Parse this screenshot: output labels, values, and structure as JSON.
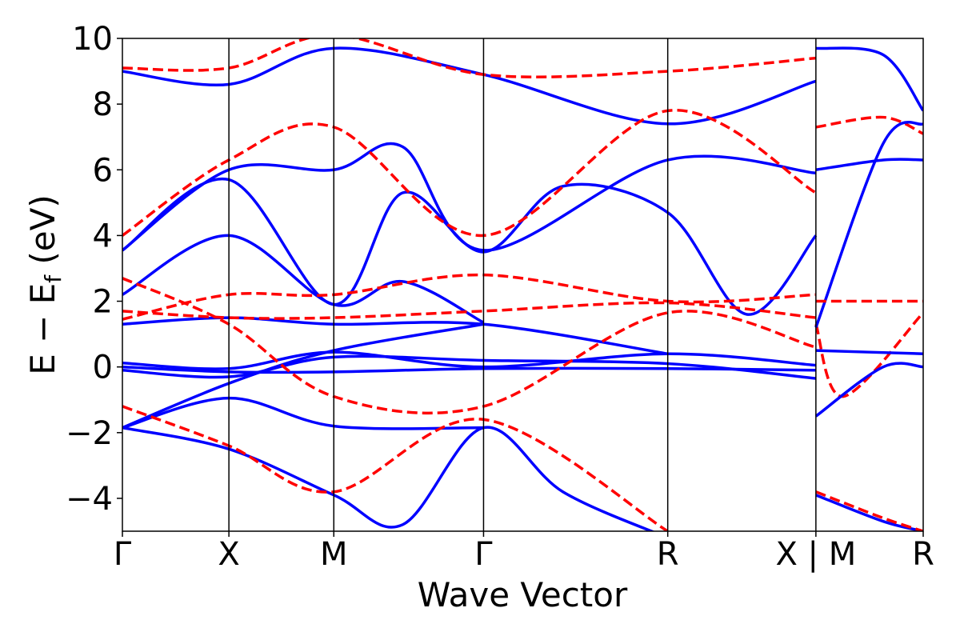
{
  "chart_data": {
    "type": "line",
    "xlabel": "Wave Vector",
    "ylabel": "E − E",
    "ylabel_subscript": "f",
    "ylabel_unit": " (eV)",
    "ylim": [
      -5,
      10
    ],
    "xlim": [
      0,
      1
    ],
    "yticks": [
      -4,
      -2,
      0,
      2,
      4,
      6,
      8,
      10
    ],
    "ytick_labels": [
      "−4",
      "−2",
      "0",
      "2",
      "4",
      "6",
      "8",
      "10"
    ],
    "kpoints": [
      {
        "label": "Γ",
        "x": 0.0
      },
      {
        "label": "X",
        "x": 0.133
      },
      {
        "label": "M",
        "x": 0.264
      },
      {
        "label": "Γ",
        "x": 0.451
      },
      {
        "label": "R",
        "x": 0.681
      },
      {
        "label": "X | M",
        "x": 0.866
      },
      {
        "label": "R",
        "x": 1.0
      }
    ],
    "style": {
      "blue": "#0000ff",
      "red": "#ff0000",
      "red_dash": "dashed",
      "blue_dash": "solid",
      "grid": false
    },
    "series": [
      {
        "color": "blue",
        "points": [
          [
            0,
            0.12
          ],
          [
            0.133,
            -0.05
          ],
          [
            0.264,
            0.45
          ],
          [
            0.451,
            0.0
          ],
          [
            0.681,
            0.4
          ],
          [
            0.866,
            0.05
          ]
        ]
      },
      {
        "color": "blue",
        "points": [
          [
            0,
            0.0
          ],
          [
            0.133,
            -0.15
          ],
          [
            0.264,
            -0.15
          ],
          [
            0.451,
            -0.05
          ],
          [
            0.681,
            -0.05
          ],
          [
            0.866,
            -0.1
          ]
        ]
      },
      {
        "color": "blue",
        "points": [
          [
            0,
            -0.1
          ],
          [
            0.133,
            -0.3
          ],
          [
            0.264,
            0.3
          ],
          [
            0.451,
            0.2
          ],
          [
            0.681,
            0.1
          ],
          [
            0.866,
            -0.35
          ]
        ]
      },
      {
        "color": "blue",
        "points": [
          [
            0,
            -1.85
          ],
          [
            0.133,
            -2.5
          ],
          [
            0.264,
            -3.9
          ],
          [
            0.35,
            -4.8
          ],
          [
            0.451,
            -1.85
          ],
          [
            0.55,
            -3.8
          ],
          [
            0.681,
            -5.2
          ]
        ]
      },
      {
        "color": "blue",
        "points": [
          [
            0,
            -1.85
          ],
          [
            0.133,
            -0.95
          ],
          [
            0.264,
            -1.8
          ],
          [
            0.451,
            -1.85
          ]
        ]
      },
      {
        "color": "blue",
        "points": [
          [
            0,
            -1.85
          ],
          [
            0.133,
            -0.5
          ],
          [
            0.264,
            0.5
          ],
          [
            0.451,
            1.3
          ]
        ]
      },
      {
        "color": "blue",
        "points": [
          [
            0,
            1.3
          ],
          [
            0.133,
            1.5
          ],
          [
            0.264,
            1.3
          ],
          [
            0.451,
            1.3
          ],
          [
            0.681,
            0.4
          ]
        ]
      },
      {
        "color": "blue",
        "points": [
          [
            0,
            2.2
          ],
          [
            0.133,
            4.0
          ],
          [
            0.264,
            1.9
          ],
          [
            0.35,
            2.6
          ],
          [
            0.451,
            1.35
          ]
        ]
      },
      {
        "color": "blue",
        "points": [
          [
            0,
            3.55
          ],
          [
            0.133,
            6.0
          ],
          [
            0.264,
            6.0
          ],
          [
            0.35,
            6.7
          ],
          [
            0.451,
            3.55
          ],
          [
            0.681,
            6.3
          ],
          [
            0.866,
            5.9
          ]
        ]
      },
      {
        "color": "blue",
        "points": [
          [
            0,
            3.55
          ],
          [
            0.133,
            5.7
          ],
          [
            0.264,
            1.9
          ],
          [
            0.35,
            5.3
          ],
          [
            0.451,
            3.5
          ],
          [
            0.55,
            5.5
          ],
          [
            0.681,
            4.7
          ],
          [
            0.78,
            1.6
          ],
          [
            0.866,
            4.0
          ]
        ]
      },
      {
        "color": "blue",
        "points": [
          [
            0,
            9.0
          ],
          [
            0.133,
            8.6
          ],
          [
            0.264,
            9.7
          ],
          [
            0.451,
            8.9
          ],
          [
            0.681,
            7.4
          ],
          [
            0.866,
            8.7
          ]
        ]
      },
      {
        "color": "red",
        "dashed": true,
        "points": [
          [
            0,
            1.7
          ],
          [
            0.133,
            1.5
          ],
          [
            0.264,
            1.5
          ],
          [
            0.451,
            1.7
          ],
          [
            0.681,
            1.95
          ],
          [
            0.866,
            1.5
          ]
        ]
      },
      {
        "color": "red",
        "dashed": true,
        "points": [
          [
            0,
            1.45
          ],
          [
            0.133,
            2.2
          ],
          [
            0.264,
            2.2
          ],
          [
            0.451,
            2.8
          ],
          [
            0.681,
            2.0
          ],
          [
            0.866,
            2.2
          ]
        ]
      },
      {
        "color": "red",
        "dashed": true,
        "points": [
          [
            0,
            2.7
          ],
          [
            0.133,
            1.3
          ],
          [
            0.264,
            -0.9
          ],
          [
            0.451,
            -1.2
          ],
          [
            0.681,
            1.65
          ],
          [
            0.866,
            0.6
          ]
        ]
      },
      {
        "color": "red",
        "dashed": true,
        "points": [
          [
            0,
            -1.2
          ],
          [
            0.133,
            -2.4
          ],
          [
            0.264,
            -3.8
          ],
          [
            0.451,
            -1.6
          ],
          [
            0.681,
            -5.0
          ]
        ]
      },
      {
        "color": "red",
        "dashed": true,
        "points": [
          [
            0,
            4.0
          ],
          [
            0.133,
            6.3
          ],
          [
            0.264,
            7.3
          ],
          [
            0.451,
            4.0
          ],
          [
            0.681,
            7.8
          ],
          [
            0.866,
            5.3
          ]
        ]
      },
      {
        "color": "red",
        "dashed": true,
        "points": [
          [
            0,
            9.1
          ],
          [
            0.133,
            9.1
          ],
          [
            0.264,
            10.1
          ],
          [
            0.451,
            8.9
          ],
          [
            0.681,
            9.0
          ],
          [
            0.866,
            9.4
          ]
        ]
      },
      {
        "color": "red",
        "dashed": true,
        "points": [
          [
            0.866,
            1.3
          ],
          [
            0.9,
            -0.9
          ],
          [
            1.0,
            1.65
          ]
        ]
      },
      {
        "color": "red",
        "dashed": true,
        "points": [
          [
            0.866,
            7.3
          ],
          [
            0.95,
            7.6
          ],
          [
            1.0,
            7.1
          ]
        ]
      },
      {
        "color": "blue",
        "points": [
          [
            0.866,
            6.0
          ],
          [
            0.95,
            6.3
          ],
          [
            1.0,
            6.3
          ]
        ]
      },
      {
        "color": "blue",
        "points": [
          [
            0.866,
            0.5
          ],
          [
            1.0,
            0.4
          ]
        ]
      },
      {
        "color": "blue",
        "points": [
          [
            0.866,
            -1.5
          ],
          [
            0.95,
            0.0
          ],
          [
            1.0,
            0.0
          ]
        ]
      },
      {
        "color": "blue",
        "points": [
          [
            0.866,
            1.2
          ],
          [
            0.95,
            6.8
          ],
          [
            1.0,
            7.4
          ]
        ]
      },
      {
        "color": "blue",
        "points": [
          [
            0.866,
            9.7
          ],
          [
            0.95,
            9.5
          ],
          [
            1.0,
            7.8
          ]
        ]
      },
      {
        "color": "red",
        "dashed": true,
        "points": [
          [
            0.866,
            2.0
          ],
          [
            1.0,
            2.0
          ]
        ]
      },
      {
        "color": "blue",
        "points": [
          [
            0.866,
            -3.9
          ],
          [
            0.95,
            -4.7
          ],
          [
            1.0,
            -5.0
          ]
        ]
      },
      {
        "color": "red",
        "dashed": true,
        "points": [
          [
            0.866,
            -3.8
          ],
          [
            0.95,
            -4.6
          ],
          [
            1.0,
            -5.0
          ]
        ]
      }
    ]
  }
}
